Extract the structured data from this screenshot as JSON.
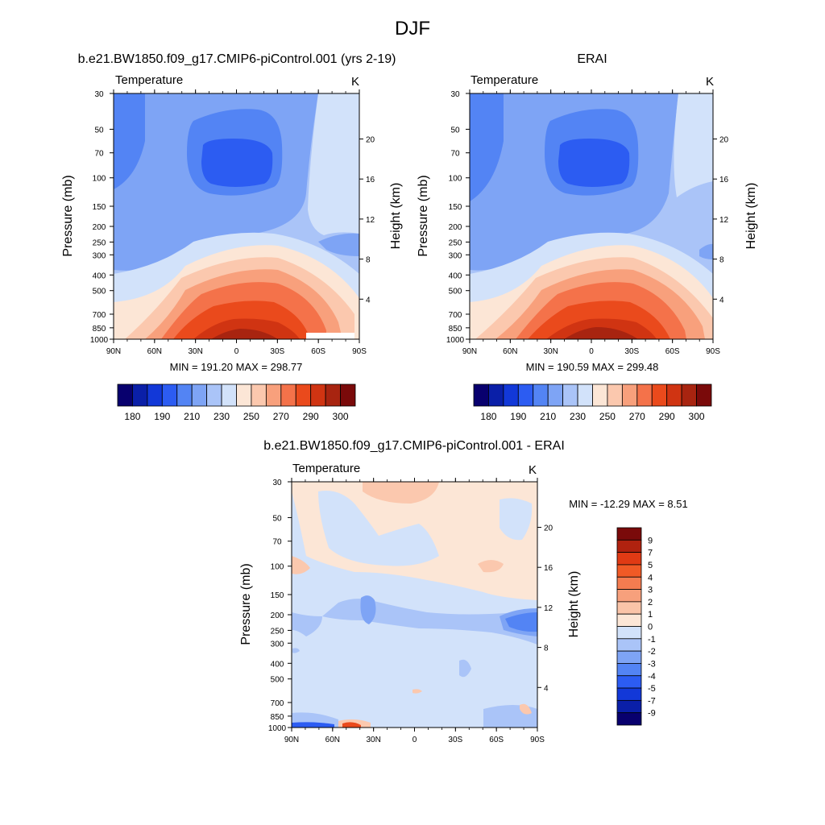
{
  "title": "DJF",
  "panels": [
    {
      "title": "b.e21.BW1850.f09_g17.CMIP6-piControl.001 (yrs 2-19)",
      "variable": "Temperature",
      "units": "K",
      "min_max": "MIN = 191.20  MAX = 298.77",
      "kind": "abs"
    },
    {
      "title": "ERAI",
      "variable": "Temperature",
      "units": "K",
      "min_max": "MIN = 190.59  MAX = 299.48",
      "kind": "abs"
    },
    {
      "title": "b.e21.BW1850.f09_g17.CMIP6-piControl.001 - ERAI",
      "variable": "Temperature",
      "units": "K",
      "min_max": "MIN = -12.29  MAX =   8.51",
      "kind": "diff"
    }
  ],
  "axes": {
    "ylabel_left": "Pressure (mb)",
    "ylabel_right": "Height (km)",
    "pressure_ticks": [
      "30",
      "50",
      "70",
      "100",
      "150",
      "200",
      "250",
      "300",
      "400",
      "500",
      "700",
      "850",
      "1000"
    ],
    "height_ticks": [
      "20",
      "16",
      "12",
      "8",
      "4"
    ],
    "lat_ticks": [
      "90N",
      "60N",
      "30N",
      "0",
      "30S",
      "60S",
      "90S"
    ]
  },
  "colorbar_abs": {
    "labels": [
      "180",
      "190",
      "210",
      "230",
      "250",
      "270",
      "290",
      "300"
    ],
    "colors": [
      "#08006e",
      "#0a1fa8",
      "#1238d8",
      "#2c5cf2",
      "#5384f4",
      "#7ea4f5",
      "#aac4f8",
      "#d2e2fa",
      "#fce6d6",
      "#fbc8ae",
      "#f8a07c",
      "#f4724a",
      "#ea4a1c",
      "#d03412",
      "#a82410",
      "#7a0a0a"
    ]
  },
  "colorbar_diff": {
    "labels": [
      "9",
      "7",
      "5",
      "4",
      "3",
      "2",
      "1",
      "0",
      "-1",
      "-2",
      "-3",
      "-4",
      "-5",
      "-7",
      "-9"
    ],
    "colors": [
      "#7a0a0a",
      "#b0220f",
      "#e03a14",
      "#f05a26",
      "#f47c50",
      "#f7a07c",
      "#fac4a8",
      "#fce6d6",
      "#d2e2fa",
      "#aac4f8",
      "#7ea4f5",
      "#5384f4",
      "#2c5cf2",
      "#1238d8",
      "#0a1fa8",
      "#08006e"
    ]
  },
  "chart_data": [
    {
      "type": "heatmap",
      "title": "b.e21.BW1850.f09_g17.CMIP6-piControl.001 (yrs 2-19)",
      "variable": "Temperature (K)",
      "x": "latitude 90N to 90S",
      "y": "pressure 30 to 1000 mb",
      "min": 191.2,
      "max": 298.77,
      "contour_levels": [
        180,
        185,
        190,
        200,
        210,
        220,
        230,
        240,
        250,
        260,
        270,
        280,
        290,
        295,
        300
      ]
    },
    {
      "type": "heatmap",
      "title": "ERAI",
      "variable": "Temperature (K)",
      "x": "latitude 90N to 90S",
      "y": "pressure 30 to 1000 mb",
      "min": 190.59,
      "max": 299.48,
      "contour_levels": [
        180,
        185,
        190,
        200,
        210,
        220,
        230,
        240,
        250,
        260,
        270,
        280,
        290,
        295,
        300
      ]
    },
    {
      "type": "heatmap",
      "title": "b.e21.BW1850.f09_g17.CMIP6-piControl.001 - ERAI",
      "variable": "Temperature difference (K)",
      "x": "latitude 90N to 90S",
      "y": "pressure 30 to 1000 mb",
      "min": -12.29,
      "max": 8.51,
      "contour_levels": [
        -9,
        -7,
        -5,
        -4,
        -3,
        -2,
        -1,
        0,
        1,
        2,
        3,
        4,
        5,
        7,
        9
      ]
    }
  ]
}
